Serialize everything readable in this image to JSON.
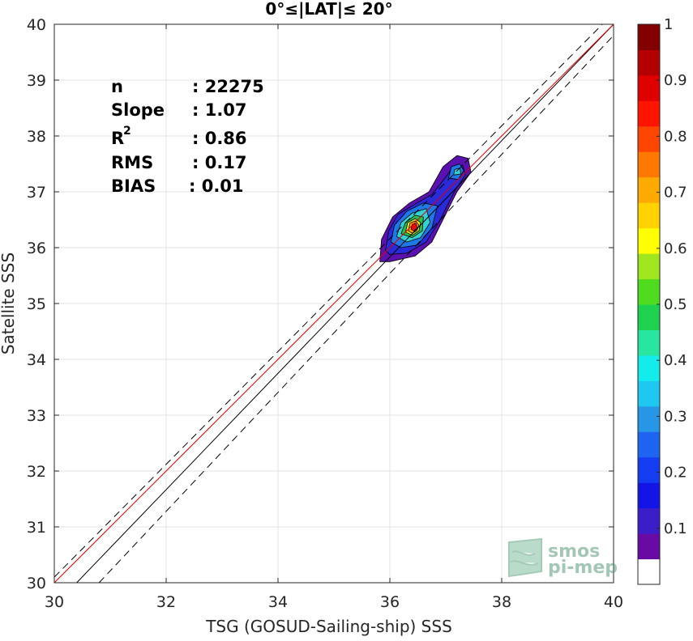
{
  "chart_data": {
    "type": "scatter",
    "title": "0°≤|LAT|≤ 20°",
    "xlabel": "TSG (GOSUD-Sailing-ship) SSS",
    "ylabel": "Satellite SSS",
    "xlim": [
      30,
      40
    ],
    "ylim": [
      30,
      40
    ],
    "xticks": [
      "30",
      "32",
      "34",
      "36",
      "38",
      "40"
    ],
    "yticks": [
      "30",
      "31",
      "32",
      "33",
      "34",
      "35",
      "36",
      "37",
      "38",
      "39",
      "40"
    ],
    "grid": true,
    "stats": [
      {
        "key": "n",
        "value": ": 22275"
      },
      {
        "key": "Slope",
        "value": ": 1.07"
      },
      {
        "key": "R",
        "sup": "2",
        "value": ": 0.86"
      },
      {
        "key": "RMS",
        "value": ": 0.17"
      },
      {
        "key": "BIAS",
        "value": ": 0.01"
      }
    ],
    "lines": [
      {
        "name": "identity",
        "color": "#000000",
        "dash": "solid",
        "points": [
          [
            30.4,
            30
          ],
          [
            40,
            40
          ]
        ]
      },
      {
        "name": "upper-bound",
        "color": "#000000",
        "dash": "dashed",
        "points": [
          [
            30,
            30.1
          ],
          [
            39.8,
            40
          ]
        ]
      },
      {
        "name": "lower-bound",
        "color": "#000000",
        "dash": "dashed",
        "points": [
          [
            30.8,
            30
          ],
          [
            40,
            39.8
          ]
        ]
      },
      {
        "name": "regression",
        "color": "#e00000",
        "dash": "solid",
        "points": [
          [
            30,
            30
          ],
          [
            40,
            40
          ]
        ]
      }
    ],
    "density_contours": [
      {
        "level": 0.05,
        "color": "#5b10b0",
        "points": [
          [
            35.82,
            35.75
          ],
          [
            35.85,
            36.15
          ],
          [
            36.05,
            36.55
          ],
          [
            36.35,
            36.8
          ],
          [
            36.7,
            37.0
          ],
          [
            36.95,
            37.45
          ],
          [
            37.2,
            37.65
          ],
          [
            37.4,
            37.6
          ],
          [
            37.45,
            37.35
          ],
          [
            37.2,
            37.0
          ],
          [
            37.0,
            36.6
          ],
          [
            36.75,
            36.1
          ],
          [
            36.45,
            35.85
          ],
          [
            36.0,
            35.75
          ]
        ]
      },
      {
        "level": 0.15,
        "color": "#2a2ad8",
        "points": [
          [
            35.92,
            35.95
          ],
          [
            35.98,
            36.3
          ],
          [
            36.15,
            36.6
          ],
          [
            36.45,
            36.78
          ],
          [
            36.75,
            36.95
          ],
          [
            36.95,
            37.2
          ],
          [
            37.1,
            37.4
          ],
          [
            37.3,
            37.48
          ],
          [
            37.35,
            37.3
          ],
          [
            37.15,
            37.0
          ],
          [
            36.9,
            36.5
          ],
          [
            36.65,
            36.1
          ],
          [
            36.3,
            35.9
          ],
          [
            36.0,
            35.88
          ]
        ]
      },
      {
        "level": 0.3,
        "color": "#1e78e6",
        "points": [
          [
            36.02,
            36.1
          ],
          [
            36.08,
            36.4
          ],
          [
            36.3,
            36.65
          ],
          [
            36.6,
            36.8
          ],
          [
            36.85,
            36.75
          ],
          [
            36.75,
            36.35
          ],
          [
            36.5,
            36.05
          ],
          [
            36.2,
            36.0
          ]
        ]
      },
      {
        "level": 0.4,
        "color": "#33d2d2",
        "points": [
          [
            36.12,
            36.2
          ],
          [
            36.2,
            36.45
          ],
          [
            36.4,
            36.62
          ],
          [
            36.65,
            36.7
          ],
          [
            36.72,
            36.45
          ],
          [
            36.55,
            36.18
          ],
          [
            36.3,
            36.1
          ]
        ]
      },
      {
        "level": 0.55,
        "color": "#26c050",
        "points": [
          [
            36.2,
            36.25
          ],
          [
            36.28,
            36.45
          ],
          [
            36.45,
            36.58
          ],
          [
            36.6,
            36.55
          ],
          [
            36.58,
            36.3
          ],
          [
            36.4,
            36.18
          ]
        ]
      },
      {
        "level": 0.65,
        "color": "#e6e61e",
        "points": [
          [
            36.28,
            36.28
          ],
          [
            36.32,
            36.45
          ],
          [
            36.45,
            36.52
          ],
          [
            36.55,
            36.45
          ],
          [
            36.52,
            36.3
          ],
          [
            36.4,
            36.22
          ]
        ]
      },
      {
        "level": 0.75,
        "color": "#ff9a00",
        "points": [
          [
            36.33,
            36.3
          ],
          [
            36.36,
            36.44
          ],
          [
            36.46,
            36.48
          ],
          [
            36.52,
            36.4
          ],
          [
            36.48,
            36.3
          ],
          [
            36.4,
            36.26
          ]
        ]
      },
      {
        "level": 0.9,
        "color": "#e01010",
        "points": [
          [
            36.38,
            36.33
          ],
          [
            36.4,
            36.42
          ],
          [
            36.47,
            36.43
          ],
          [
            36.49,
            36.35
          ],
          [
            36.43,
            36.3
          ]
        ]
      },
      {
        "level": 0.3,
        "color": "#1e78e6",
        "points": [
          [
            37.05,
            37.25
          ],
          [
            37.1,
            37.45
          ],
          [
            37.25,
            37.5
          ],
          [
            37.32,
            37.38
          ],
          [
            37.22,
            37.22
          ]
        ]
      },
      {
        "level": 0.45,
        "color": "#33d2d2",
        "points": [
          [
            37.14,
            37.3
          ],
          [
            37.16,
            37.4
          ],
          [
            37.25,
            37.42
          ],
          [
            37.27,
            37.32
          ]
        ]
      }
    ],
    "colorbar": {
      "ticks": [
        "0.1",
        "0.2",
        "0.3",
        "0.4",
        "0.5",
        "0.6",
        "0.7",
        "0.8",
        "0.9",
        "1"
      ],
      "colors": [
        "#ffffff",
        "#6a0aa5",
        "#3c1ec8",
        "#1414e6",
        "#143cf0",
        "#1e64f0",
        "#2896e6",
        "#1ec8f0",
        "#14ebeb",
        "#28e6a0",
        "#1ed250",
        "#50dc1e",
        "#a0e61e",
        "#ffff00",
        "#ffd200",
        "#ffaa00",
        "#ff7800",
        "#ff4600",
        "#ff1400",
        "#e00000",
        "#b40000",
        "#820000"
      ]
    },
    "watermark": "smos pi-mep"
  }
}
